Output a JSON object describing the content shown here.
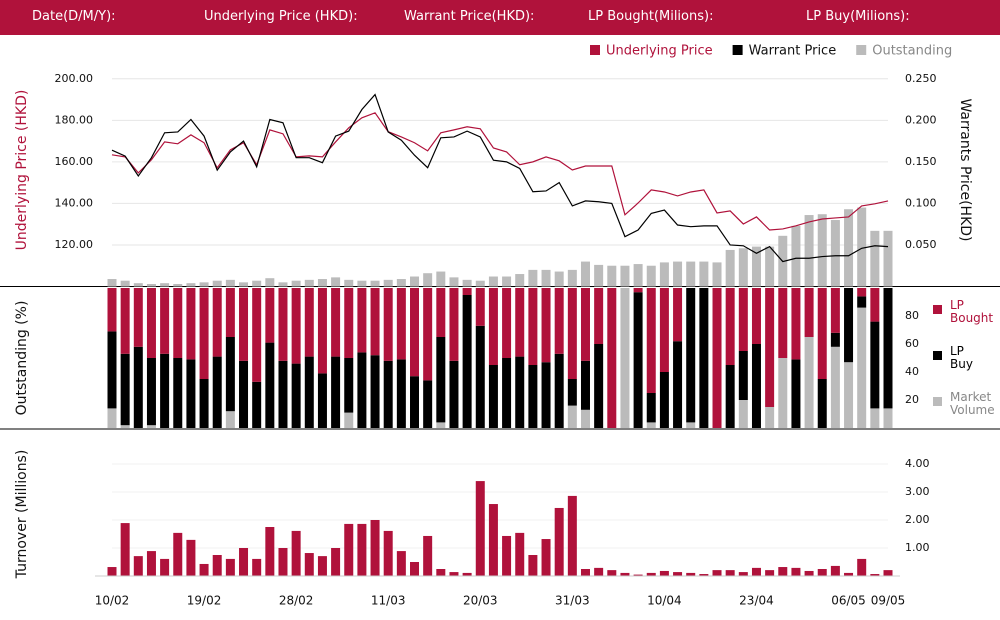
{
  "header": [
    "Date(D/M/Y):",
    "Underlying Price (HKD):",
    "Warrant  Price(HKD):",
    "LP Bought(Milions):",
    "LP Buy(Milions):"
  ],
  "chart_data": [
    {
      "type": "combo",
      "ylabel": "Underlying Price (HKD)",
      "y2label": "Warrants  Price(HKD)",
      "ylim": [
        100,
        210
      ],
      "yticks": [
        {
          "value": 120,
          "label": "120.00"
        },
        {
          "value": 140,
          "label": "140.00"
        },
        {
          "value": 160,
          "label": "160.00"
        },
        {
          "value": 180,
          "label": "180.00"
        },
        {
          "value": 200,
          "label": "200.00"
        }
      ],
      "y2lim": [
        0,
        0.275
      ],
      "y2ticks": [
        {
          "value": 0.05,
          "label": "0.050"
        },
        {
          "value": 0.1,
          "label": "0.100"
        },
        {
          "value": 0.15,
          "label": "0.150"
        },
        {
          "value": 0.2,
          "label": "0.200"
        },
        {
          "value": 0.25,
          "label": "0.250"
        }
      ],
      "grid": true,
      "legend": "top-right",
      "series": [
        {
          "name": "Underlying Price",
          "type": "line",
          "color": "#b0123b",
          "values": [
            163.4,
            162.4,
            154.7,
            161,
            169.6,
            168.7,
            173,
            169.2,
            157.1,
            165.8,
            169.2,
            158.6,
            175.4,
            173.5,
            162.4,
            162.9,
            162.4,
            169.6,
            176.4,
            181.2,
            183.6,
            174.5,
            172,
            169.2,
            165.3,
            174,
            175.4,
            176.9,
            175.9,
            166.7,
            164.8,
            158.6,
            160,
            162.4,
            160.5,
            156.1,
            158,
            158,
            158,
            134.5,
            140.2,
            146.5,
            145.5,
            143.6,
            145.5,
            146.5,
            135.4,
            136.4,
            130.1,
            133.5,
            127.2,
            127.7,
            129.2,
            131.1,
            132.5,
            133,
            133.5,
            138.8,
            139.8,
            141.2
          ]
        },
        {
          "name": "Warrant  Price",
          "type": "line",
          "axis": "y2",
          "color": "#000000",
          "values": [
            0.164,
            0.157,
            0.133,
            0.155,
            0.185,
            0.186,
            0.201,
            0.181,
            0.14,
            0.162,
            0.175,
            0.144,
            0.201,
            0.197,
            0.155,
            0.155,
            0.149,
            0.181,
            0.187,
            0.213,
            0.231,
            0.186,
            0.176,
            0.158,
            0.143,
            0.179,
            0.18,
            0.187,
            0.18,
            0.152,
            0.15,
            0.142,
            0.114,
            0.115,
            0.125,
            0.097,
            0.103,
            0.102,
            0.1,
            0.06,
            0.068,
            0.088,
            0.092,
            0.074,
            0.072,
            0.073,
            0.073,
            0.05,
            0.049,
            0.04,
            0.048,
            0.03,
            0.034,
            0.034,
            0.036,
            0.037,
            0.037,
            0.046,
            0.049,
            0.048
          ]
        },
        {
          "name": "Outstanding",
          "type": "bar",
          "axis": "y2",
          "color": "#bbbbbb",
          "values": [
            0.009,
            0.007,
            0.004,
            0.003,
            0.004,
            0.003,
            0.004,
            0.005,
            0.007,
            0.008,
            0.005,
            0.007,
            0.01,
            0.005,
            0.007,
            0.008,
            0.009,
            0.011,
            0.008,
            0.007,
            0.007,
            0.008,
            0.009,
            0.012,
            0.016,
            0.018,
            0.011,
            0.008,
            0.007,
            0.012,
            0.012,
            0.015,
            0.02,
            0.02,
            0.018,
            0.02,
            0.03,
            0.026,
            0.025,
            0.025,
            0.027,
            0.025,
            0.029,
            0.03,
            0.03,
            0.03,
            0.029,
            0.044,
            0.046,
            0.048,
            0.048,
            0.061,
            0.073,
            0.086,
            0.087,
            0.08,
            0.093,
            0.095,
            0.067,
            0.067
          ]
        }
      ]
    },
    {
      "type": "stacked-bar",
      "ylabel": "Outstanding (%)",
      "ylim": [
        0,
        100
      ],
      "yticks": [
        20,
        40,
        60,
        80
      ],
      "legend": "right",
      "series": [
        {
          "name": "Market Volume",
          "color": "#bbbbbb",
          "values": [
            14,
            2,
            0,
            2,
            0,
            0,
            0,
            0,
            0,
            12,
            0,
            0,
            0,
            0,
            0,
            0,
            0,
            0,
            11,
            0,
            0,
            0,
            0,
            0,
            0,
            4,
            0,
            0,
            0,
            0,
            0,
            0,
            0,
            0,
            0,
            16,
            13,
            0,
            0,
            100,
            0,
            4,
            0,
            0,
            4,
            0,
            0,
            0,
            20,
            0,
            15,
            50,
            0,
            65,
            0,
            58,
            47,
            86,
            14,
            14
          ]
        },
        {
          "name": "LP Buy",
          "color": "#000000",
          "values": [
            55,
            51,
            58,
            48,
            53,
            50,
            49,
            35,
            51,
            53,
            48,
            33,
            61,
            48,
            46,
            51,
            39,
            51,
            39,
            54,
            52,
            48,
            49,
            37,
            34,
            61,
            48,
            95,
            73,
            45,
            50,
            51,
            45,
            47,
            53,
            19,
            35,
            60,
            0,
            0,
            97,
            21,
            40,
            62,
            96,
            100,
            0,
            45,
            35,
            60,
            0,
            0,
            49,
            0,
            35,
            10,
            53,
            8,
            62,
            86
          ]
        },
        {
          "name": "LP Bought",
          "color": "#b0123b",
          "values": [
            31,
            47,
            42,
            50,
            47,
            50,
            51,
            65,
            49,
            35,
            52,
            67,
            39,
            52,
            54,
            49,
            61,
            49,
            50,
            46,
            48,
            52,
            51,
            63,
            66,
            35,
            52,
            5,
            27,
            55,
            50,
            49,
            55,
            53,
            47,
            65,
            52,
            40,
            100,
            0,
            3,
            75,
            60,
            38,
            0,
            0,
            100,
            55,
            45,
            40,
            85,
            50,
            51,
            35,
            65,
            32,
            0,
            6,
            24,
            0
          ]
        }
      ]
    },
    {
      "type": "bar",
      "ylabel": "Turnover (Millions)",
      "color": "#b0123b",
      "ylim": [
        0,
        4.4
      ],
      "yticks": [
        {
          "value": 1,
          "label": "1.00"
        },
        {
          "value": 2,
          "label": "2.00"
        },
        {
          "value": 3,
          "label": "3.00"
        },
        {
          "value": 4,
          "label": "4.00"
        }
      ],
      "categories": [
        "10/02",
        null,
        null,
        null,
        null,
        null,
        null,
        "19/02",
        null,
        null,
        null,
        null,
        null,
        null,
        "28/02",
        null,
        null,
        null,
        null,
        null,
        null,
        "11/03",
        null,
        null,
        null,
        null,
        null,
        null,
        "20/03",
        null,
        null,
        null,
        null,
        null,
        null,
        "31/03",
        null,
        null,
        null,
        null,
        null,
        null,
        "10/04",
        null,
        null,
        null,
        null,
        null,
        null,
        "23/04",
        null,
        null,
        null,
        null,
        null,
        null,
        "06/05",
        null,
        null,
        "09/05"
      ],
      "values": [
        0.32,
        1.89,
        0.71,
        0.89,
        0.61,
        1.54,
        1.29,
        0.43,
        0.75,
        0.61,
        1.0,
        0.61,
        1.75,
        1.0,
        1.61,
        0.82,
        0.71,
        1.0,
        1.86,
        1.86,
        2.0,
        1.61,
        0.89,
        0.5,
        1.43,
        0.25,
        0.14,
        0.11,
        3.39,
        2.57,
        1.43,
        1.54,
        0.75,
        1.32,
        2.43,
        2.86,
        0.25,
        0.29,
        0.21,
        0.11,
        0.05,
        0.11,
        0.18,
        0.14,
        0.11,
        0.07,
        0.21,
        0.21,
        0.14,
        0.29,
        0.21,
        0.32,
        0.29,
        0.18,
        0.25,
        0.36,
        0.11,
        0.61,
        0.07,
        0.21
      ]
    }
  ]
}
